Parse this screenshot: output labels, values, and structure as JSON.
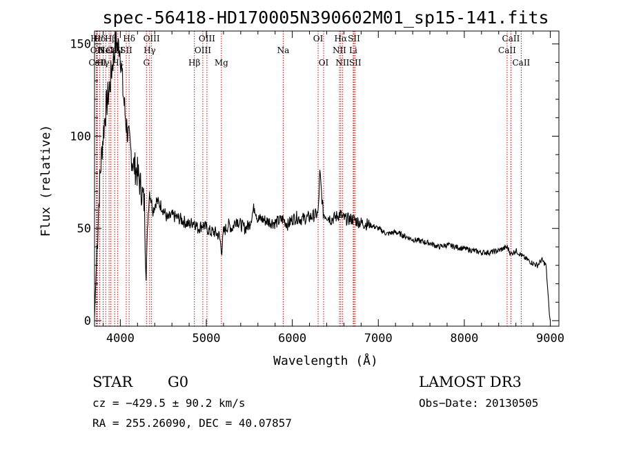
{
  "chart_data": {
    "type": "line",
    "title": "spec-56418-HD170005N390602M01_sp15-141.fits",
    "xlabel": "Wavelength (Å)",
    "ylabel": "Flux (relative)",
    "xlim": [
      3700,
      9100
    ],
    "ylim": [
      -3,
      157
    ],
    "x_ticks": [
      4000,
      5000,
      6000,
      7000,
      8000,
      9000
    ],
    "y_ticks": [
      0,
      50,
      100,
      150
    ],
    "grid": false,
    "series": [
      {
        "x": [
          3700,
          3730,
          3760,
          3790,
          3820,
          3850,
          3880,
          3910,
          3930,
          3950,
          3970,
          3990,
          4010,
          4030,
          4060,
          4090,
          4120,
          4150,
          4200,
          4250,
          4280,
          4300,
          4320,
          4340,
          4380,
          4420,
          4480,
          4550,
          4600,
          4700,
          4800,
          4860,
          4900,
          4960,
          5050,
          5100,
          5150,
          5180,
          5200,
          5260,
          5300,
          5350,
          5400,
          5450,
          5500,
          5560,
          5600,
          5650,
          5700,
          5800,
          5890,
          5950,
          6000,
          6050,
          6100,
          6200,
          6300,
          6320,
          6360,
          6400,
          6450,
          6500,
          6560,
          6580,
          6620,
          6700,
          6800,
          6900,
          7000,
          7100,
          7200,
          7300,
          7400,
          7500,
          7600,
          7700,
          7800,
          7900,
          8000,
          8100,
          8200,
          8300,
          8400,
          8500,
          8540,
          8600,
          8700,
          8800,
          8850,
          8900,
          8950,
          8990,
          9000
        ],
        "y": [
          2,
          40,
          75,
          95,
          110,
          120,
          128,
          140,
          146,
          152,
          148,
          150,
          140,
          125,
          110,
          100,
          92,
          85,
          80,
          70,
          63,
          25,
          55,
          70,
          60,
          65,
          62,
          55,
          57,
          55,
          52,
          54,
          50,
          52,
          48,
          48,
          46,
          38,
          48,
          52,
          50,
          55,
          52,
          50,
          52,
          62,
          55,
          55,
          54,
          53,
          55,
          52,
          55,
          56,
          55,
          56,
          58,
          80,
          58,
          57,
          55,
          56,
          58,
          56,
          55,
          55,
          53,
          52,
          50,
          47,
          48,
          46,
          44,
          43,
          42,
          40,
          41,
          40,
          39,
          38,
          37,
          37,
          38,
          40,
          36,
          38,
          34,
          31,
          30,
          33,
          30,
          3,
          0
        ]
      }
    ],
    "emission_lines": [
      {
        "label": "Hε",
        "x": 3720,
        "row": 0
      },
      {
        "label": "Hδ",
        "x": 3760,
        "row": 0
      },
      {
        "label": "OII",
        "x": 3727,
        "row": 1
      },
      {
        "label": "CaII",
        "x": 3734,
        "row": 2
      },
      {
        "label": "Hγ",
        "x": 3800,
        "row": 2
      },
      {
        "label": "HeI",
        "x": 3830,
        "row": 1
      },
      {
        "label": "NeIII",
        "x": 3869,
        "row": 1
      },
      {
        "label": "Hβ",
        "x": 3890,
        "row": 0
      },
      {
        "label": "CaII",
        "x": 3934,
        "row": 1
      },
      {
        "label": "Hε",
        "x": 3970,
        "row": 2
      },
      {
        "label": "SII",
        "x": 4069,
        "row": 1
      },
      {
        "label": "Hδ",
        "x": 4102,
        "row": 0
      },
      {
        "label": "G",
        "x": 4304,
        "row": 2
      },
      {
        "label": "Hγ",
        "x": 4341,
        "row": 1
      },
      {
        "label": "OIII",
        "x": 4363,
        "row": 0
      },
      {
        "label": "Hβ",
        "x": 4861,
        "row": 2
      },
      {
        "label": "OIII",
        "x": 4959,
        "row": 1
      },
      {
        "label": "OIII",
        "x": 5007,
        "row": 0
      },
      {
        "label": "Mg",
        "x": 5175,
        "row": 2
      },
      {
        "label": "Na",
        "x": 5894,
        "row": 1
      },
      {
        "label": "OI",
        "x": 6300,
        "row": 0
      },
      {
        "label": "OI",
        "x": 6364,
        "row": 2
      },
      {
        "label": "NII",
        "x": 6548,
        "row": 1
      },
      {
        "label": "Hα",
        "x": 6563,
        "row": 0
      },
      {
        "label": "NII",
        "x": 6583,
        "row": 2
      },
      {
        "label": "SII",
        "x": 6717,
        "row": 0
      },
      {
        "label": "Li",
        "x": 6708,
        "row": 1
      },
      {
        "label": "SII",
        "x": 6731,
        "row": 2
      },
      {
        "label": "CaII",
        "x": 8498,
        "row": 1
      },
      {
        "label": "CaII",
        "x": 8542,
        "row": 0
      },
      {
        "label": "CaII",
        "x": 8662,
        "row": 2
      }
    ]
  },
  "info": {
    "class": "STAR",
    "subclass": "G0",
    "survey": "LAMOST DR3",
    "cz": "cz = −429.5 ± 90.2 km/s",
    "obs_date": "Obs−Date: 20130505",
    "coords": "RA = 255.26090, DEC =  40.07857"
  },
  "colors": {
    "spectrum": "#000000",
    "line_markers": "#cc0000",
    "axes": "#000000"
  }
}
